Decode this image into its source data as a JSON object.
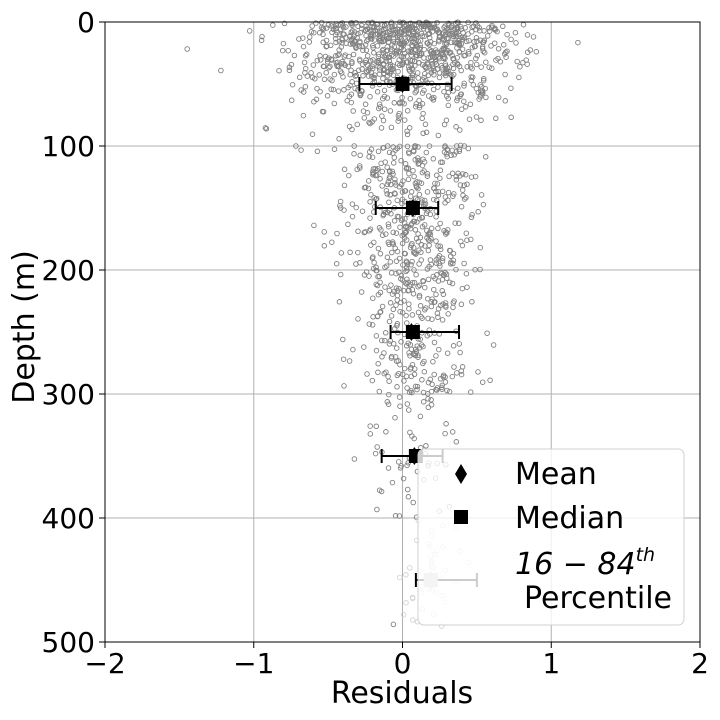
{
  "chart_data": {
    "type": "scatter",
    "xlabel": "Residuals",
    "ylabel": "Depth (m)",
    "xlim": [
      -2,
      2
    ],
    "ylim": [
      500,
      0
    ],
    "y_axis_inverted": true,
    "x_ticks": [
      -2,
      -1,
      0,
      1,
      2
    ],
    "x_tick_labels": [
      "−2",
      "−1",
      "0",
      "1",
      "2"
    ],
    "y_ticks": [
      0,
      100,
      200,
      300,
      400,
      500
    ],
    "y_tick_labels": [
      "0",
      "100",
      "200",
      "300",
      "400",
      "500"
    ],
    "grid": true,
    "legend_position": "bottom-right",
    "legend": {
      "mean_label": "Mean",
      "median_label": "Median",
      "percentile_label_main": "16 − 84",
      "percentile_label_sup": "th",
      "percentile_label_line2": "Percentile"
    },
    "scatter_color": "#808080",
    "marker_color": "#000000",
    "faded_marker_color": "#c8c8c8",
    "point_clouds": [
      {
        "depth_range": [
          0,
          100
        ],
        "center": 0.0,
        "spread": 0.36,
        "count": 900
      },
      {
        "depth_range": [
          100,
          200
        ],
        "center": 0.05,
        "spread": 0.22,
        "count": 380
      },
      {
        "depth_range": [
          200,
          300
        ],
        "center": 0.07,
        "spread": 0.2,
        "count": 260
      },
      {
        "depth_range": [
          300,
          400
        ],
        "center": 0.03,
        "spread": 0.17,
        "count": 60
      },
      {
        "depth_range": [
          400,
          490
        ],
        "center": 0.17,
        "spread": 0.13,
        "count": 45
      }
    ],
    "binned_stats": [
      {
        "depth": 50,
        "mean": 0.0,
        "median": 0.0,
        "p16": -0.29,
        "p84": 0.33,
        "faded": false
      },
      {
        "depth": 150,
        "mean": 0.07,
        "median": 0.07,
        "p16": -0.18,
        "p84": 0.24,
        "faded": false
      },
      {
        "depth": 250,
        "mean": 0.06,
        "median": 0.07,
        "p16": -0.08,
        "p84": 0.38,
        "faded": false
      },
      {
        "depth": 350,
        "mean": 0.08,
        "median": 0.09,
        "p16": -0.14,
        "p84": 0.27,
        "faded": false
      },
      {
        "depth": 450,
        "mean": 0.19,
        "median": 0.19,
        "p16": 0.09,
        "p84": 0.5,
        "faded": true
      }
    ]
  }
}
